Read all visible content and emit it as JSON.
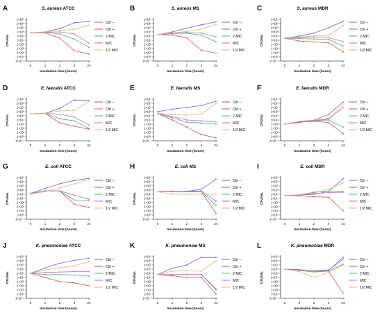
{
  "figure": {
    "legend_labels": [
      "Ctrl –",
      "Ctrl +",
      "2 MIC",
      "MIC",
      "1/2 MIC"
    ],
    "series_colors": [
      "#6464e6",
      "#e64b4b",
      "#3cbc6c",
      "#c864dc",
      "#e6b46e"
    ],
    "xlabel": "Incubation time (hours)",
    "ylabel": "CFU/mL"
  },
  "chart_data": [
    {
      "type": "line",
      "panel": "A",
      "title_species": "S. aureus",
      "title_suffix": "ATCC",
      "categories": [
        "0",
        "1",
        "2",
        "4",
        "24"
      ],
      "ylabel": "CFU/mL",
      "xlabel": "Incubation time (hours)",
      "yticks": [
        "1×10⁹",
        "1×10⁸",
        "1×10⁷",
        "1×10⁶",
        "1×10⁵",
        "1×10⁴",
        "1×10³",
        "1×10²",
        "1×10¹",
        "1×10⁰",
        "1×10⁻¹"
      ],
      "ylim": [
        -1,
        9
      ],
      "series": [
        {
          "name": "Ctrl –",
          "values": [
            5.8,
            6.0,
            6.8,
            8.2,
            8.5
          ]
        },
        {
          "name": "Ctrl +",
          "values": [
            5.8,
            5.8,
            4.5,
            1.5,
            0.7
          ]
        },
        {
          "name": "2 MIC",
          "values": [
            5.8,
            5.9,
            5.5,
            4.3,
            2.3
          ]
        },
        {
          "name": "MIC",
          "values": [
            5.8,
            5.9,
            6.0,
            5.5,
            3.3
          ]
        },
        {
          "name": "1/2 MIC",
          "values": [
            5.8,
            6.0,
            6.3,
            6.6,
            7.6
          ]
        }
      ]
    },
    {
      "type": "line",
      "panel": "B",
      "title_species": "S. aureus",
      "title_suffix": "MS",
      "categories": [
        "0",
        "1",
        "2",
        "4",
        "24"
      ],
      "ylabel": "CFU/mL",
      "xlabel": "Incubation time (hours)",
      "yticks": [
        "1×10⁹",
        "1×10⁸",
        "1×10⁷",
        "1×10⁶",
        "1×10⁵",
        "1×10⁴",
        "1×10³",
        "1×10²",
        "1×10¹",
        "1×10⁰",
        "1×10⁻¹"
      ],
      "ylim": [
        -1,
        9
      ],
      "series": [
        {
          "name": "Ctrl –",
          "values": [
            5.3,
            6.0,
            6.9,
            7.7,
            8.4
          ]
        },
        {
          "name": "Ctrl +",
          "values": [
            5.3,
            5.3,
            4.5,
            1.6,
            0.9
          ]
        },
        {
          "name": "2 MIC",
          "values": [
            5.3,
            5.6,
            5.7,
            5.2,
            3.6
          ]
        },
        {
          "name": "MIC",
          "values": [
            5.3,
            5.6,
            5.9,
            5.7,
            4.8
          ]
        },
        {
          "name": "1/2 MIC",
          "values": [
            5.3,
            5.8,
            6.1,
            6.7,
            7.8
          ]
        }
      ]
    },
    {
      "type": "line",
      "panel": "C",
      "title_species": "S. aureus",
      "title_suffix": "MDR",
      "categories": [
        "0",
        "1",
        "2",
        "4",
        "24"
      ],
      "ylabel": "CFU/mL",
      "xlabel": "Incubation time (hours)",
      "yticks": [
        "1×10⁹",
        "1×10⁸",
        "1×10⁷",
        "1×10⁶",
        "1×10⁵",
        "1×10⁴",
        "1×10³",
        "1×10²",
        "1×10¹",
        "1×10⁰",
        "1×10⁻¹"
      ],
      "ylim": [
        -1,
        9
      ],
      "series": [
        {
          "name": "Ctrl –",
          "values": [
            4.5,
            5.0,
            5.7,
            7.0,
            8.5
          ]
        },
        {
          "name": "Ctrl +",
          "values": [
            4.5,
            3.8,
            3.6,
            3.4,
            1.2
          ]
        },
        {
          "name": "2 MIC",
          "values": [
            4.5,
            4.4,
            4.3,
            4.2,
            2.6
          ]
        },
        {
          "name": "MIC",
          "values": [
            4.5,
            4.6,
            4.8,
            4.6,
            3.7
          ]
        },
        {
          "name": "1/2 MIC",
          "values": [
            4.5,
            4.8,
            5.0,
            5.2,
            7.5
          ]
        }
      ]
    },
    {
      "type": "line",
      "panel": "D",
      "title_species": "E. faecalis",
      "title_suffix": "ATCC",
      "categories": [
        "0",
        "1",
        "2",
        "4",
        "24"
      ],
      "ylabel": "CFU/mL",
      "xlabel": "Incubation time (hours)",
      "yticks": [
        "1×10⁹",
        "1×10⁸",
        "1×10⁷",
        "1×10⁶",
        "1×10⁵",
        "1×10⁴",
        "1×10³",
        "1×10²",
        "1×10¹",
        "1×10⁰",
        "1×10⁻¹"
      ],
      "ylim": [
        -1,
        9
      ],
      "series": [
        {
          "name": "Ctrl –",
          "values": [
            5.5,
            5.6,
            6.8,
            8.8,
            8.7
          ]
        },
        {
          "name": "Ctrl +",
          "values": [
            5.5,
            5.6,
            3.3,
            2.5,
            1.8
          ]
        },
        {
          "name": "2 MIC",
          "values": [
            5.5,
            5.6,
            4.3,
            3.8,
            2.0
          ]
        },
        {
          "name": "MIC",
          "values": [
            5.5,
            5.6,
            5.4,
            4.7,
            2.8
          ]
        },
        {
          "name": "1/2 MIC",
          "values": [
            5.5,
            5.6,
            6.2,
            6.3,
            8.5
          ]
        }
      ]
    },
    {
      "type": "line",
      "panel": "E",
      "title_species": "E. faecalis",
      "title_suffix": "MS",
      "categories": [
        "0",
        "1",
        "2",
        "4",
        "24"
      ],
      "ylabel": "CFU/mL",
      "xlabel": "Incubation time (hours)",
      "yticks": [
        "1×10⁹",
        "1×10⁸",
        "1×10⁷",
        "1×10⁶",
        "1×10⁵",
        "1×10⁴",
        "1×10³",
        "1×10²",
        "1×10¹",
        "1×10⁰",
        "1×10⁻¹"
      ],
      "ylim": [
        -1,
        9
      ],
      "series": [
        {
          "name": "Ctrl –",
          "values": [
            6.0,
            6.6,
            7.0,
            7.5,
            8.5
          ]
        },
        {
          "name": "Ctrl +",
          "values": [
            5.6,
            4.0,
            2.3,
            0.5,
            -0.3
          ]
        },
        {
          "name": "2 MIC",
          "values": [
            5.6,
            4.5,
            3.5,
            3.3,
            3.0
          ]
        },
        {
          "name": "MIC",
          "values": [
            5.6,
            4.8,
            4.0,
            3.8,
            3.5
          ]
        },
        {
          "name": "1/2 MIC",
          "values": [
            5.6,
            5.3,
            5.2,
            5.4,
            8.0
          ]
        }
      ]
    },
    {
      "type": "line",
      "panel": "F",
      "title_species": "E. faecalis",
      "title_suffix": "MDR",
      "categories": [
        "0",
        "1",
        "2",
        "4",
        "24"
      ],
      "ylabel": "CFU/mL",
      "xlabel": "Incubation time (hours)",
      "yticks": [
        "1×10⁹",
        "1×10⁸",
        "1×10⁷",
        "1×10⁶",
        "1×10⁵",
        "1×10⁴",
        "1×10³",
        "1×10²",
        "1×10¹",
        "1×10⁰",
        "1×10⁻¹"
      ],
      "ylim": [
        -1,
        9
      ],
      "series": [
        {
          "name": "Ctrl –",
          "values": [
            3.0,
            3.4,
            4.0,
            5.3,
            8.3
          ]
        },
        {
          "name": "Ctrl +",
          "values": [
            3.0,
            3.5,
            3.7,
            3.4,
            0.7
          ]
        },
        {
          "name": "2 MIC",
          "values": [
            3.0,
            3.6,
            3.8,
            4.0,
            2.3
          ]
        },
        {
          "name": "MIC",
          "values": [
            3.0,
            3.6,
            3.9,
            4.2,
            7.0
          ]
        },
        {
          "name": "1/2 MIC",
          "values": [
            3.0,
            3.7,
            4.0,
            4.4,
            7.6
          ]
        }
      ]
    },
    {
      "type": "line",
      "panel": "G",
      "title_species": "E. coli",
      "title_suffix": "ATCC",
      "categories": [
        "0",
        "1",
        "2",
        "4",
        "24"
      ],
      "ylabel": "CFU/mL",
      "xlabel": "Incubation time (hours)",
      "yticks": [
        "1×10⁹",
        "1×10⁸",
        "1×10⁷",
        "1×10⁶",
        "1×10⁵",
        "1×10⁴",
        "1×10³",
        "1×10²",
        "1×10¹",
        "1×10⁰",
        "1×10⁻¹"
      ],
      "ylim": [
        -1,
        9
      ],
      "series": [
        {
          "name": "Ctrl –",
          "values": [
            5.2,
            6.4,
            7.5,
            8.3,
            8.8
          ]
        },
        {
          "name": "Ctrl +",
          "values": [
            5.2,
            5.8,
            5.8,
            2.6,
            1.8
          ]
        },
        {
          "name": "2 MIC",
          "values": [
            5.2,
            5.8,
            5.8,
            3.6,
            3.4
          ]
        },
        {
          "name": "MIC",
          "values": [
            5.2,
            5.8,
            5.8,
            4.8,
            3.8
          ]
        },
        {
          "name": "1/2 MIC",
          "values": [
            5.0,
            5.6,
            6.5,
            7.5,
            8.5
          ]
        }
      ]
    },
    {
      "type": "line",
      "panel": "H",
      "title_species": "E. coli",
      "title_suffix": "MS",
      "categories": [
        "0",
        "1",
        "2",
        "4",
        "24"
      ],
      "ylabel": "CFU/mL",
      "xlabel": "Incubation time (hours)",
      "yticks": [
        "1×10⁹",
        "1×10⁸",
        "1×10⁷",
        "1×10⁶",
        "1×10⁵",
        "1×10⁴",
        "1×10³",
        "1×10²",
        "1×10¹",
        "1×10⁰",
        "1×10⁻¹"
      ],
      "ylim": [
        -1,
        9
      ],
      "series": [
        {
          "name": "Ctrl –",
          "values": [
            5.6,
            5.7,
            5.7,
            6.2,
            8.6
          ]
        },
        {
          "name": "Ctrl +",
          "values": [
            5.6,
            5.6,
            5.6,
            5.6,
            0.4
          ]
        },
        {
          "name": "2 MIC",
          "values": [
            5.6,
            5.7,
            5.6,
            5.6,
            2.3
          ]
        },
        {
          "name": "MIC",
          "values": [
            5.6,
            5.7,
            5.7,
            5.8,
            3.3
          ]
        },
        {
          "name": "1/2 MIC",
          "values": [
            5.6,
            5.0,
            5.0,
            5.0,
            5.0
          ]
        }
      ]
    },
    {
      "type": "line",
      "panel": "I",
      "title_species": "E. coli",
      "title_suffix": "MDR",
      "categories": [
        "0",
        "1",
        "2",
        "4",
        "24"
      ],
      "ylabel": "CFU/mL",
      "xlabel": "Incubation time (hours)",
      "yticks": [
        "1×10⁹",
        "1×10⁸",
        "1×10⁷",
        "1×10⁶",
        "1×10⁵",
        "1×10⁴",
        "1×10³",
        "1×10²",
        "1×10¹",
        "1×10⁰",
        "1×10⁻¹"
      ],
      "ylim": [
        -1,
        9
      ],
      "series": [
        {
          "name": "Ctrl –",
          "values": [
            4.7,
            4.8,
            5.0,
            5.7,
            8.7
          ]
        },
        {
          "name": "Ctrl +",
          "values": [
            4.7,
            4.6,
            4.4,
            4.3,
            1.0
          ]
        },
        {
          "name": "2 MIC",
          "values": [
            4.7,
            4.8,
            5.5,
            5.7,
            5.6
          ]
        },
        {
          "name": "MIC",
          "values": [
            4.7,
            4.8,
            5.2,
            5.4,
            5.5
          ]
        },
        {
          "name": "1/2 MIC",
          "values": [
            4.7,
            4.9,
            5.3,
            6.2,
            7.7
          ]
        }
      ]
    },
    {
      "type": "line",
      "panel": "J",
      "title_species": "K. pneumoniae",
      "title_suffix": "ATCC",
      "categories": [
        "0",
        "1",
        "2",
        "4",
        "24"
      ],
      "ylabel": "CFU/mL",
      "xlabel": "Incubation time (hours)",
      "yticks": [
        "1×10⁹",
        "1×10⁸",
        "1×10⁷",
        "1×10⁶",
        "1×10⁵",
        "1×10⁴",
        "1×10³",
        "1×10²",
        "1×10¹",
        "1×10⁰",
        "1×10⁻¹"
      ],
      "ylim": [
        -1,
        9
      ],
      "series": [
        {
          "name": "Ctrl –",
          "values": [
            5.0,
            6.3,
            7.4,
            8.1,
            8.6
          ]
        },
        {
          "name": "Ctrl +",
          "values": [
            5.0,
            4.0,
            3.0,
            2.7,
            2.0
          ]
        },
        {
          "name": "2 MIC",
          "values": [
            5.0,
            4.7,
            4.7,
            4.6,
            4.3
          ]
        },
        {
          "name": "MIC",
          "values": [
            5.0,
            5.2,
            5.3,
            5.4,
            5.4
          ]
        },
        {
          "name": "1/2 MIC",
          "values": [
            5.0,
            5.8,
            6.3,
            6.8,
            7.8
          ]
        }
      ]
    },
    {
      "type": "line",
      "panel": "K",
      "title_species": "K. pneumoniae",
      "title_suffix": "MS",
      "categories": [
        "0",
        "1",
        "2",
        "4",
        "24"
      ],
      "ylabel": "CFU/mL",
      "xlabel": "Incubation time (hours)",
      "yticks": [
        "1×10⁹",
        "1×10⁸",
        "1×10⁷",
        "1×10⁶",
        "1×10⁵",
        "1×10⁴",
        "1×10³",
        "1×10²",
        "1×10¹",
        "1×10⁰",
        "1×10⁻¹"
      ],
      "ylim": [
        -1,
        9
      ],
      "series": [
        {
          "name": "Ctrl –",
          "values": [
            4.7,
            6.2,
            7.0,
            8.8,
            8.8
          ]
        },
        {
          "name": "Ctrl +",
          "values": [
            4.7,
            4.4,
            4.0,
            4.0,
            0.0
          ]
        },
        {
          "name": "2 MIC",
          "values": [
            4.7,
            4.7,
            4.7,
            4.7,
            1.0
          ]
        },
        {
          "name": "MIC",
          "values": [
            4.7,
            4.7,
            4.7,
            4.7,
            1.3
          ]
        },
        {
          "name": "1/2 MIC",
          "values": [
            4.7,
            5.5,
            5.6,
            5.5,
            8.0
          ]
        }
      ]
    },
    {
      "type": "line",
      "panel": "L",
      "title_species": "K. pneumoniae",
      "title_suffix": "MDR",
      "categories": [
        "0",
        "1",
        "2",
        "4",
        "24"
      ],
      "ylabel": "CFU/mL",
      "xlabel": "Incubation time (hours)",
      "yticks": [
        "1×10⁹",
        "1×10⁸",
        "1×10⁷",
        "1×10⁶",
        "1×10⁵",
        "1×10⁴",
        "1×10³",
        "1×10²",
        "1×10¹",
        "1×10⁰",
        "1×10⁻¹"
      ],
      "ylim": [
        -1,
        9
      ],
      "series": [
        {
          "name": "Ctrl –",
          "values": [
            6.0,
            5.8,
            5.6,
            5.7,
            8.8
          ]
        },
        {
          "name": "Ctrl +",
          "values": [
            6.0,
            5.9,
            5.5,
            5.5,
            0.2
          ]
        },
        {
          "name": "2 MIC",
          "values": [
            6.0,
            5.7,
            5.3,
            5.5,
            7.2
          ]
        },
        {
          "name": "MIC",
          "values": [
            6.0,
            5.8,
            5.6,
            5.8,
            8.3
          ]
        },
        {
          "name": "1/2 MIC",
          "values": [
            6.0,
            5.4,
            4.0,
            5.2,
            7.0
          ]
        }
      ]
    }
  ]
}
